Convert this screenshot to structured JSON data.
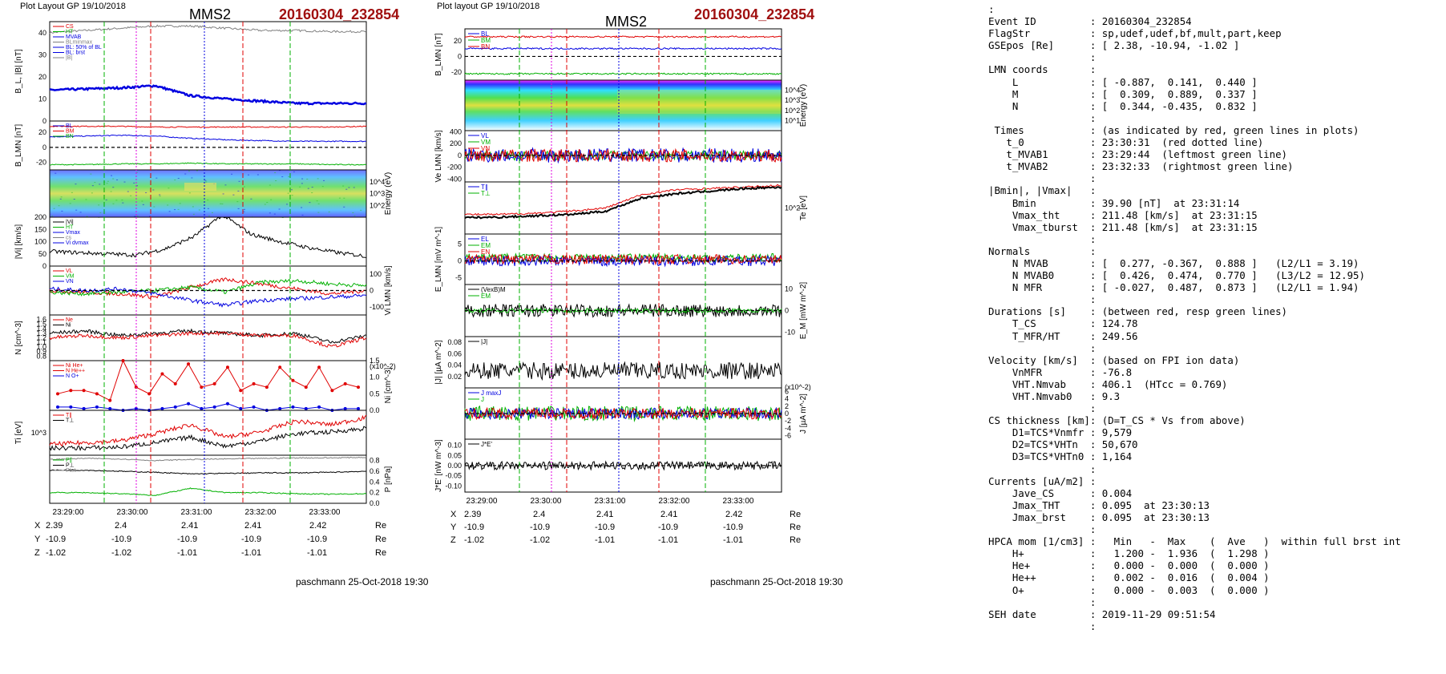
{
  "left_panel": {
    "layout_label": "Plot Layout GP 19/10/2018",
    "spacecraft": "MMS2",
    "event": "20160304_232854",
    "footer": "paschmann 25-Oct-2018 19:30",
    "time_ticks": [
      "23:29:00",
      "23:30:00",
      "23:31:00",
      "23:32:00",
      "23:33:00"
    ],
    "coords": {
      "X": {
        "label": "X",
        "first": "2.39",
        "values": [
          "2.4",
          "2.41",
          "2.41",
          "2.42"
        ],
        "unit": "Re"
      },
      "Y": {
        "label": "Y",
        "first": "-10.9",
        "values": [
          "-10.9",
          "-10.9",
          "-10.9",
          "-10.9"
        ],
        "unit": "Re"
      },
      "Z": {
        "label": "Z",
        "first": "-1.02",
        "values": [
          "-1.02",
          "-1.01",
          "-1.01",
          "-1.01"
        ],
        "unit": "Re"
      }
    }
  },
  "right_panel": {
    "layout_label": "Plot layout GP 19/10/2018",
    "spacecraft": "MMS2",
    "event": "20160304_232854",
    "footer": "paschmann 25-Oct-2018 19:30",
    "time_ticks": [
      "23:29:00",
      "23:30:00",
      "23:31:00",
      "23:32:00",
      "23:33:00"
    ],
    "coords": {
      "X": {
        "label": "X",
        "first": "2.39",
        "values": [
          "2.4",
          "2.41",
          "2.41",
          "2.42"
        ],
        "unit": "Re"
      },
      "Y": {
        "label": "Y",
        "first": "-10.9",
        "values": [
          "-10.9",
          "-10.9",
          "-10.9",
          "-10.9"
        ],
        "unit": "Re"
      },
      "Z": {
        "label": "Z",
        "first": "-1.02",
        "values": [
          "-1.02",
          "-1.01",
          "-1.01",
          "-1.01"
        ],
        "unit": "Re"
      }
    }
  },
  "colors": {
    "red": "#e00000",
    "green": "#00b000",
    "blue": "#0000e0",
    "magenta": "#e000e0",
    "black": "#000000",
    "gray": "#808080",
    "event_red": "#a01010"
  },
  "info_lines": [
    ":",
    "Event ID         : 20160304_232854",
    "FlagStr          : sp,udef,udef,bf,mult,part,keep",
    "GSEpos [Re]      : [ 2.38, -10.94, -1.02 ]",
    "                 :",
    "LMN coords       :",
    "    L            : [ -0.887,  0.141,  0.440 ]",
    "    M            : [  0.309,  0.889,  0.337 ]",
    "    N            : [  0.344, -0.435,  0.832 ]",
    "                 :",
    " Times           : (as indicated by red, green lines in plots)",
    "   t_0           : 23:30:31  (red dotted line)",
    "   t_MVAB1       : 23:29:44  (leftmost green line)",
    "   t_MVAB2       : 23:32:33  (rightmost green line)",
    "                 :",
    "|Bmin|, |Vmax|   :",
    "    Bmin         : 39.90 [nT]  at 23:31:14",
    "    Vmax_tht     : 211.48 [km/s]  at 23:31:15",
    "    Vmax_tburst  : 211.48 [km/s]  at 23:31:15",
    "                 :",
    "Normals          :",
    "    N MVAB       : [  0.277, -0.367,  0.888 ]   (L2/L1 = 3.19)",
    "    N MVAB0      : [  0.426,  0.474,  0.770 ]   (L3/L2 = 12.95)",
    "    N MFR        : [ -0.027,  0.487,  0.873 ]   (L2/L1 = 1.94)",
    "                 :",
    "Durations [s]    : (between red, resp green lines)",
    "    T_CS         : 124.78",
    "    T_MFR/HT     : 249.56",
    "                 :",
    "Velocity [km/s]  : (based on FPI ion data)",
    "    VnMFR        : -76.8",
    "    VHT.Nmvab    : 406.1  (HTcc = 0.769)",
    "    VHT.Nmvab0   : 9.3",
    "                 :",
    "CS thickness [km]: (D=T_CS * Vs from above)",
    "    D1=TCS*Vnmfr : 9,579",
    "    D2=TCS*VHTn  : 50,670",
    "    D3=TCS*VHTn0 : 1,164",
    "                 :",
    "Currents [uA/m2] :",
    "    Jave_CS      : 0.004",
    "    Jmax_THT     : 0.095  at 23:30:13",
    "    Jmax_brst    : 0.095  at 23:30:13",
    "                 :",
    "HPCA mom [1/cm3] :   Min   -  Max    (  Ave   )  within full brst int",
    "    H+           :   1.200 -  1.936  (  1.298 )",
    "    He+          :   0.000 -  0.000  (  0.000 )",
    "    He++         :   0.002 -  0.016  (  0.004 )",
    "    O+           :   0.000 -  0.003  (  0.000 )",
    "                 :",
    "SEH date         : 2019-11-29 09:51:54",
    "                 :"
  ],
  "chart_data": [
    {
      "type": "line",
      "title": "MMS2",
      "x": "time",
      "xlim": [
        "23:29:00",
        "23:33:50"
      ],
      "panels": [
        {
          "ylabel": "B_L, |B| [nT]",
          "ylim": [
            0,
            45
          ],
          "yticks": [
            "0",
            "10",
            "20",
            "30",
            "40"
          ],
          "legend": [
            "CS",
            "HT",
            "MVAB",
            "BLminmax",
            "BL: 50% of BL",
            "BL: brst",
            "|B|"
          ],
          "series": [
            {
              "name": "|B|",
              "values": [
                40,
                41,
                42,
                43,
                43,
                42,
                41,
                41,
                40.5,
                40.5
              ]
            },
            {
              "name": "BL: brst",
              "values": [
                14,
                14.5,
                15,
                16,
                11.5,
                10,
                9,
                8,
                8,
                8
              ]
            }
          ]
        },
        {
          "ylabel": "B_LMN [nT]",
          "ylim": [
            -30,
            35
          ],
          "yticks": [
            "-20",
            "0",
            "20"
          ],
          "legend": [
            "BL",
            "BM",
            "BN"
          ],
          "series": [
            {
              "name": "BL",
              "values": [
                14,
                15,
                16,
                15,
                12,
                10,
                9,
                8,
                8,
                8
              ]
            },
            {
              "name": "BM",
              "values": [
                28,
                28,
                28,
                27,
                27,
                27,
                27,
                27,
                27,
                28
              ]
            },
            {
              "name": "BN",
              "values": [
                -23,
                -23,
                -22,
                -22,
                -21,
                -22,
                -22,
                -22,
                -23,
                -23
              ]
            }
          ]
        },
        {
          "ylabel": "Energy (eV)",
          "type": "spectrogram",
          "yticks": [
            "10^2",
            "10^3",
            "10^4"
          ]
        },
        {
          "ylabel": "|Vi| [km/s]",
          "ylim": [
            0,
            200
          ],
          "yticks": [
            "0",
            "50",
            "100",
            "150",
            "200"
          ],
          "legend": [
            "|Vi|",
            "HT",
            "Vmax",
            "cs",
            "Vi dvmax"
          ],
          "series": [
            {
              "name": "|Vi|",
              "values": [
                60,
                55,
                50,
                45,
                70,
                120,
                210,
                130,
                100,
                75,
                55,
                40
              ]
            }
          ]
        },
        {
          "ylabel": "Vi LMN [km/s]",
          "ylim": [
            -150,
            150
          ],
          "yticks": [
            "-100",
            "0",
            "100"
          ],
          "legend": [
            "VL",
            "VM",
            "VN"
          ],
          "series": [
            {
              "name": "VL",
              "values": [
                0,
                -10,
                -20,
                -40,
                20,
                70,
                40,
                10,
                -20,
                0
              ]
            },
            {
              "name": "VM",
              "values": [
                -10,
                -20,
                -10,
                0,
                20,
                -10,
                50,
                60,
                40,
                30
              ]
            },
            {
              "name": "VN",
              "values": [
                10,
                0,
                10,
                -20,
                -60,
                -90,
                -60,
                -50,
                -40,
                -30
              ]
            }
          ]
        },
        {
          "ylabel": "N [cm^-3]",
          "ylim": [
            0.7,
            1.7
          ],
          "yticks": [
            "0.8",
            "0.9",
            "1.0",
            "1.1",
            "1.2",
            "1.3",
            "1.4",
            "1.5",
            "1.6"
          ],
          "legend": [
            "Ne",
            "Ni"
          ],
          "series": [
            {
              "name": "Ni",
              "values": [
                1.3,
                1.35,
                1.25,
                1.3,
                1.35,
                1.3,
                1.25,
                1.3,
                1.1,
                1.25
              ]
            },
            {
              "name": "Ne",
              "values": [
                1.2,
                1.25,
                1.2,
                1.25,
                1.3,
                1.3,
                1.25,
                1.25,
                1.0,
                1.2
              ]
            }
          ]
        },
        {
          "ylabel": "Ni [cm^-3]",
          "yunit": "(x10^-2)",
          "ylim": [
            0,
            1.5
          ],
          "yticks": [
            "0.0",
            "0.5",
            "1.0",
            "1.5"
          ],
          "legend": [
            "Ni He+",
            "N He++",
            "N O+"
          ],
          "series": [
            {
              "name": "N He++",
              "values": [
                0.5,
                0.6,
                0.6,
                0.5,
                0.3,
                1.5,
                0.7,
                0.5,
                1.1,
                0.8,
                1.4,
                0.7,
                0.8,
                1.3,
                0.6,
                0.8,
                0.7,
                1.3,
                0.9,
                0.7,
                1.3,
                0.6,
                0.8,
                0.7
              ]
            },
            {
              "name": "N O+",
              "values": [
                0.1,
                0.1,
                0.05,
                0.1,
                0.05,
                0,
                0.05,
                0,
                0.05,
                0.1,
                0.2,
                0.05,
                0.1,
                0.2,
                0.05,
                0.1,
                0,
                0.05,
                0.1,
                0.05,
                0.1,
                0,
                0.05,
                0.05
              ]
            }
          ]
        },
        {
          "ylabel": "Ti [eV]",
          "yticks": [
            "10^3"
          ],
          "legend": [
            "T∥",
            "T⊥"
          ],
          "series": [
            {
              "name": "T∥",
              "values": [
                1100,
                1200,
                1300,
                1700,
                2200,
                1500,
                1800,
                2400,
                2200,
                2600
              ]
            },
            {
              "name": "T⊥",
              "values": [
                900,
                900,
                950,
                1200,
                1500,
                1000,
                1300,
                1700,
                1800,
                2000
              ]
            }
          ]
        },
        {
          "ylabel": "P [nPa]",
          "ylim": [
            0,
            0.9
          ],
          "yticks": [
            "0.0",
            "0.2",
            "0.4",
            "0.6",
            "0.8"
          ],
          "legend": [
            "P∥",
            "P⊥",
            "Ptot"
          ],
          "series": [
            {
              "name": "Ptot",
              "values": [
                0.82,
                0.84,
                0.83,
                0.8,
                0.82,
                0.83,
                0.84,
                0.85,
                0.85,
                0.86
              ]
            },
            {
              "name": "P⊥",
              "values": [
                0.62,
                0.62,
                0.6,
                0.58,
                0.55,
                0.56,
                0.57,
                0.57,
                0.58,
                0.6
              ]
            },
            {
              "name": "P∥",
              "values": [
                0.2,
                0.2,
                0.18,
                0.15,
                0.28,
                0.2,
                0.2,
                0.18,
                0.17,
                0.18
              ]
            }
          ]
        }
      ]
    },
    {
      "type": "line",
      "title": "MMS2",
      "x": "time",
      "xlim": [
        "23:29:00",
        "23:33:50"
      ],
      "panels": [
        {
          "ylabel": "B_LMN [nT]",
          "ylim": [
            -30,
            35
          ],
          "yticks": [
            "-20",
            "0",
            "20"
          ],
          "legend": [
            "BL",
            "BM",
            "BN"
          ]
        },
        {
          "ylabel": "Energy (eV)",
          "type": "spectrogram",
          "yticks": [
            "10^1",
            "10^2",
            "10^3",
            "10^4"
          ]
        },
        {
          "ylabel": "Ve LMN [km/s]",
          "ylim": [
            -450,
            420
          ],
          "yticks": [
            "-400",
            "-200",
            "0",
            "200",
            "400"
          ],
          "legend": [
            "VL",
            "VM",
            "VN"
          ]
        },
        {
          "ylabel": "Te [eV]",
          "yticks": [
            "10^2"
          ],
          "legend": [
            "T∥",
            "T⊥"
          ]
        },
        {
          "ylabel": "E_LMN [mV m^-1]",
          "ylim": [
            -7,
            8
          ],
          "yticks": [
            "-5",
            "0",
            "5"
          ],
          "legend": [
            "EL",
            "EM",
            "EN"
          ]
        },
        {
          "ylabel": "E_M [mW m^-2]",
          "ylim": [
            -12,
            12
          ],
          "yticks": [
            "-10",
            "0",
            "10"
          ],
          "legend": [
            "(VexB)M",
            "EM"
          ]
        },
        {
          "ylabel": "|J| [µA m^-2]",
          "ylim": [
            0,
            0.09
          ],
          "yticks": [
            "0.02",
            "0.04",
            "0.06",
            "0.08"
          ],
          "legend": [
            "|J|"
          ]
        },
        {
          "ylabel": "J [µA m^-2]",
          "yunit": "(x10^-2)",
          "ylim": [
            -7,
            7
          ],
          "yticks": [
            "-6",
            "-4",
            "-2",
            "0",
            "2",
            "4",
            "6"
          ],
          "legend": [
            "J maxJ",
            "J"
          ]
        },
        {
          "ylabel": "J*E' [nW m^-3]",
          "ylim": [
            -0.13,
            0.13
          ],
          "yticks": [
            "-0.10",
            "-0.05",
            "0.00",
            "0.05",
            "0.10"
          ],
          "legend": [
            "J*E'"
          ]
        }
      ]
    }
  ]
}
